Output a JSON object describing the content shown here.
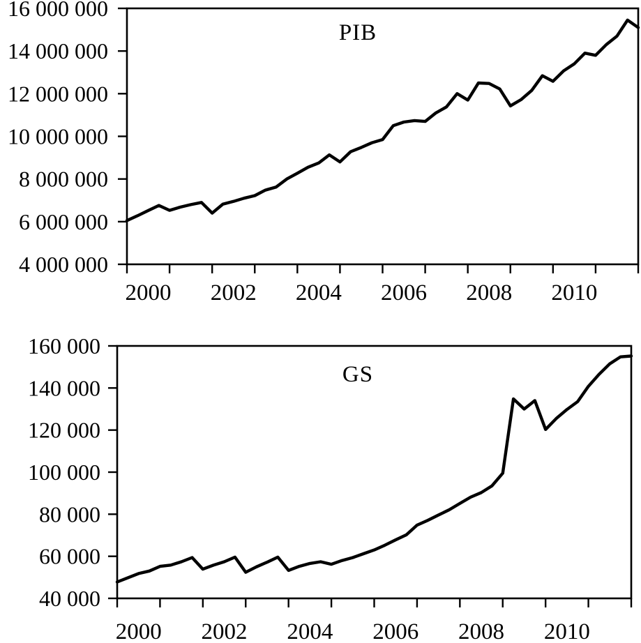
{
  "page": {
    "background": "#ffffff",
    "foreground": "#000000"
  },
  "chart_data": [
    {
      "type": "line",
      "title": "PIB",
      "frequency": "quarterly",
      "x_start": "2000Q1",
      "x_end": "2012Q1",
      "xlim": [
        2000,
        2012
      ],
      "ylim": [
        4000000,
        16000000
      ],
      "ytick_values": [
        4000000,
        6000000,
        8000000,
        10000000,
        12000000,
        14000000,
        16000000
      ],
      "ytick_labels": [
        "4 000 000",
        "6 000 000",
        "8 000 000",
        "10 000 000",
        "12 000 000",
        "14 000 000",
        "16 000 000"
      ],
      "xtick_years": [
        2000,
        2001,
        2002,
        2003,
        2004,
        2005,
        2006,
        2007,
        2008,
        2009,
        2010,
        2011,
        2012
      ],
      "xlabel_years": [
        2000,
        2002,
        2004,
        2006,
        2008,
        2010
      ],
      "xlabel_texts": [
        "2000",
        "2002",
        "2004",
        "2006",
        "2008",
        "2010"
      ],
      "grid": false,
      "legend_position": "top-center",
      "line_color": "#000000",
      "values": [
        6050000,
        6280000,
        6520000,
        6760000,
        6530000,
        6680000,
        6800000,
        6900000,
        6400000,
        6820000,
        6950000,
        7100000,
        7220000,
        7480000,
        7620000,
        8000000,
        8270000,
        8550000,
        8750000,
        9130000,
        8800000,
        9280000,
        9480000,
        9700000,
        9850000,
        10500000,
        10670000,
        10740000,
        10700000,
        11100000,
        11380000,
        12000000,
        11700000,
        12500000,
        12480000,
        12220000,
        11430000,
        11720000,
        12150000,
        12840000,
        12580000,
        13070000,
        13400000,
        13900000,
        13800000,
        14300000,
        14700000,
        15450000,
        15100000
      ]
    },
    {
      "type": "line",
      "title": "GS",
      "frequency": "quarterly",
      "x_start": "2000Q1",
      "x_end": "2012Q1",
      "xlim": [
        2000,
        2012
      ],
      "ylim": [
        40000,
        160000
      ],
      "ytick_values": [
        40000,
        60000,
        80000,
        100000,
        120000,
        140000,
        160000
      ],
      "ytick_labels": [
        "40 000",
        "60 000",
        "80 000",
        "100 000",
        "120 000",
        "140 000",
        "160 000"
      ],
      "xtick_years": [
        2000,
        2001,
        2002,
        2003,
        2004,
        2005,
        2006,
        2007,
        2008,
        2009,
        2010,
        2011,
        2012
      ],
      "xlabel_years": [
        2000,
        2002,
        2004,
        2006,
        2008,
        2010
      ],
      "xlabel_texts": [
        "2000",
        "2002",
        "2004",
        "2006",
        "2008",
        "2010"
      ],
      "grid": false,
      "legend_position": "top-center",
      "line_color": "#000000",
      "values": [
        47800,
        49800,
        51800,
        53000,
        55200,
        55800,
        57400,
        59400,
        53900,
        55800,
        57400,
        59600,
        52400,
        55000,
        57200,
        59600,
        53300,
        55200,
        56600,
        57400,
        56200,
        58000,
        59400,
        61200,
        63000,
        65300,
        67800,
        70200,
        74800,
        77100,
        79600,
        82100,
        85100,
        88100,
        90300,
        93500,
        99500,
        134800,
        130000,
        134000,
        120300,
        125500,
        129800,
        133500,
        140800,
        146500,
        151500,
        154800,
        155200
      ]
    }
  ]
}
